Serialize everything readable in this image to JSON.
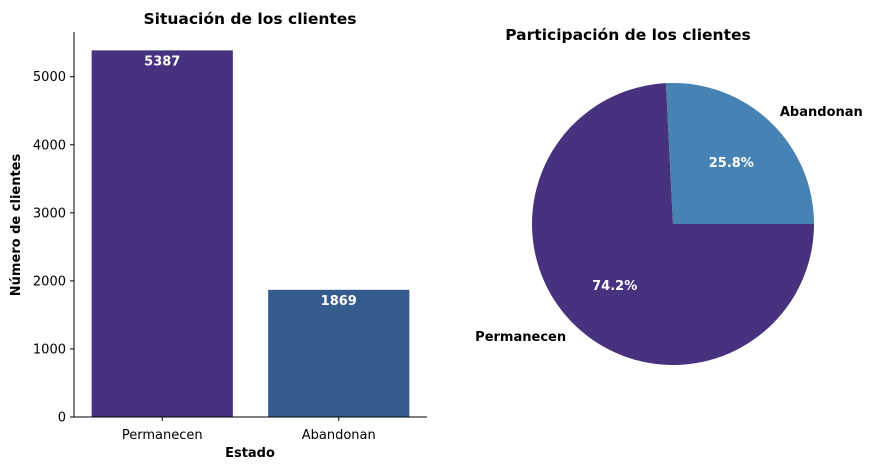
{
  "chart_data": [
    {
      "type": "bar",
      "title": "Situación de los clientes",
      "xlabel": "Estado",
      "ylabel": "Número de clientes",
      "categories": [
        "Permanecen",
        "Abandonan"
      ],
      "values": [
        5387,
        1869
      ],
      "data_labels": [
        "5387",
        "1869"
      ],
      "colors": [
        "#46327e",
        "#365c8d"
      ],
      "ylim": [
        0,
        5657
      ],
      "yticks": [
        0,
        1000,
        2000,
        3000,
        4000,
        5000
      ],
      "ytick_labels": [
        "0",
        "1000",
        "2000",
        "3000",
        "4000",
        "5000"
      ],
      "grid": false
    },
    {
      "type": "pie",
      "title": "Participación de los clientes",
      "labels": [
        "Permanecen",
        "Abandonan"
      ],
      "values": [
        74.2,
        25.8
      ],
      "pct_labels": [
        "74.2%",
        "25.8%"
      ],
      "colors": [
        "#46327e",
        "#4682b4"
      ],
      "start_angle_deg": 0,
      "direction": "clockwise"
    }
  ]
}
